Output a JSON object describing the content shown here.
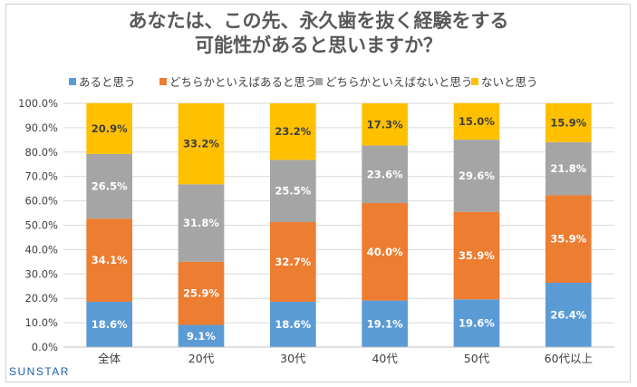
{
  "title_lines": [
    "あなたは、この先、永久歯を抜く経験をする",
    "可能性があると思いますか？"
  ],
  "brand": "SUNSTAR",
  "chart_data": {
    "type": "bar",
    "stacked": true,
    "title": "あなたは、この先、永久歯を抜く経験をする 可能性があると思いますか？",
    "categories": [
      "全体",
      "20代",
      "30代",
      "40代",
      "50代",
      "60代以上"
    ],
    "ylim": [
      0,
      100
    ],
    "y_ticks": [
      "0.0%",
      "10.0%",
      "20.0%",
      "30.0%",
      "40.0%",
      "50.0%",
      "60.0%",
      "70.0%",
      "80.0%",
      "90.0%",
      "100.0%"
    ],
    "legend_position": "top",
    "series": [
      {
        "name": "あると思う",
        "color": "#5b9bd5",
        "label_color": "#ffffff",
        "values": [
          18.6,
          9.1,
          18.6,
          19.1,
          19.6,
          26.4
        ],
        "labels": [
          "18.6%",
          "9.1%",
          "18.6%",
          "19.1%",
          "19.6%",
          "26.4%"
        ]
      },
      {
        "name": "どちらかといえばあると思う",
        "color": "#ed7d31",
        "label_color": "#ffffff",
        "values": [
          34.1,
          25.9,
          32.7,
          40.0,
          35.9,
          35.9
        ],
        "labels": [
          "34.1%",
          "25.9%",
          "32.7%",
          "40.0%",
          "35.9%",
          "35.9%"
        ]
      },
      {
        "name": "どちらかといえばないと思う",
        "color": "#a5a5a5",
        "label_color": "#ffffff",
        "values": [
          26.5,
          31.8,
          25.5,
          23.6,
          29.6,
          21.8
        ],
        "labels": [
          "26.5%",
          "31.8%",
          "25.5%",
          "23.6%",
          "29.6%",
          "21.8%"
        ]
      },
      {
        "name": "ないと思う",
        "color": "#ffc000",
        "label_color": "#404040",
        "values": [
          20.9,
          33.2,
          23.2,
          17.3,
          15.0,
          15.9
        ],
        "labels": [
          "20.9%",
          "33.2%",
          "23.2%",
          "17.3%",
          "15.0%",
          "15.9%"
        ]
      }
    ]
  }
}
